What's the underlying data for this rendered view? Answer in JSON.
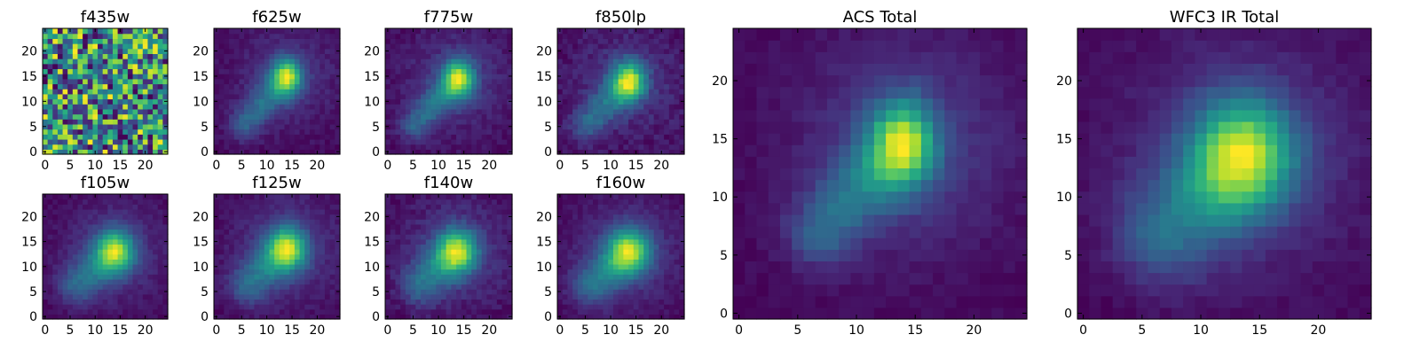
{
  "colormap": "viridis",
  "chart_data": [
    {
      "type": "heatmap",
      "title": "f435w",
      "xlim": [
        0,
        25
      ],
      "ylim": [
        0,
        25
      ],
      "xticks": [
        0,
        5,
        10,
        15,
        20
      ],
      "yticks": [
        0,
        5,
        10,
        15,
        20
      ],
      "grid": false,
      "field": {
        "kind": "noise",
        "seed": 11,
        "mean": 0.72,
        "spread": 0.55
      }
    },
    {
      "type": "heatmap",
      "title": "f625w",
      "xlim": [
        0,
        25
      ],
      "ylim": [
        0,
        25
      ],
      "xticks": [
        0,
        5,
        10,
        15,
        20
      ],
      "yticks": [
        0,
        5,
        10,
        15,
        20
      ],
      "grid": false,
      "field": {
        "kind": "galaxy",
        "seed": 23,
        "peak": [
          14.5,
          15.5
        ],
        "peak_amp": 1.0,
        "peak_sx": 2.0,
        "peak_sy": 2.6,
        "tail_from": [
          14,
          15
        ],
        "tail_to": [
          6,
          6
        ],
        "tail_amp": 0.5,
        "tail_width": 2.2,
        "halo_amp": 0.25,
        "halo_width": 7.0,
        "base": 0.2,
        "noise": 0.07
      }
    },
    {
      "type": "heatmap",
      "title": "f775w",
      "xlim": [
        0,
        25
      ],
      "ylim": [
        0,
        25
      ],
      "xticks": [
        0,
        5,
        10,
        15,
        20
      ],
      "yticks": [
        0,
        5,
        10,
        15,
        20
      ],
      "grid": false,
      "field": {
        "kind": "galaxy",
        "seed": 37,
        "peak": [
          14.5,
          15.0
        ],
        "peak_amp": 1.0,
        "peak_sx": 2.1,
        "peak_sy": 2.7,
        "tail_from": [
          14,
          15
        ],
        "tail_to": [
          6,
          6
        ],
        "tail_amp": 0.5,
        "tail_width": 2.2,
        "halo_amp": 0.25,
        "halo_width": 7.0,
        "base": 0.22,
        "noise": 0.08
      }
    },
    {
      "type": "heatmap",
      "title": "f850lp",
      "xlim": [
        0,
        25
      ],
      "ylim": [
        0,
        25
      ],
      "xticks": [
        0,
        5,
        10,
        15,
        20
      ],
      "yticks": [
        0,
        5,
        10,
        15,
        20
      ],
      "grid": false,
      "field": {
        "kind": "galaxy",
        "seed": 41,
        "peak": [
          14.0,
          14.5
        ],
        "peak_amp": 1.0,
        "peak_sx": 2.2,
        "peak_sy": 2.8,
        "tail_from": [
          14,
          14.5
        ],
        "tail_to": [
          6,
          6
        ],
        "tail_amp": 0.5,
        "tail_width": 2.3,
        "halo_amp": 0.25,
        "halo_width": 7.0,
        "base": 0.2,
        "noise": 0.1
      }
    },
    {
      "type": "heatmap",
      "title": "f105w",
      "xlim": [
        0,
        25
      ],
      "ylim": [
        0,
        25
      ],
      "xticks": [
        0,
        5,
        10,
        15,
        20
      ],
      "yticks": [
        0,
        5,
        10,
        15,
        20
      ],
      "grid": false,
      "field": {
        "kind": "galaxy",
        "seed": 53,
        "peak": [
          14.5,
          13.5
        ],
        "peak_amp": 1.0,
        "peak_sx": 2.6,
        "peak_sy": 3.0,
        "tail_from": [
          14,
          13.5
        ],
        "tail_to": [
          7,
          7
        ],
        "tail_amp": 0.55,
        "tail_width": 2.8,
        "halo_amp": 0.3,
        "halo_width": 8.0,
        "base": 0.2,
        "noise": 0.07
      }
    },
    {
      "type": "heatmap",
      "title": "f125w",
      "xlim": [
        0,
        25
      ],
      "ylim": [
        0,
        25
      ],
      "xticks": [
        0,
        5,
        10,
        15,
        20
      ],
      "yticks": [
        0,
        5,
        10,
        15,
        20
      ],
      "grid": false,
      "field": {
        "kind": "galaxy",
        "seed": 61,
        "peak": [
          14.5,
          14.0
        ],
        "peak_amp": 1.0,
        "peak_sx": 2.6,
        "peak_sy": 3.0,
        "tail_from": [
          14,
          14
        ],
        "tail_to": [
          7,
          7
        ],
        "tail_amp": 0.55,
        "tail_width": 2.8,
        "halo_amp": 0.3,
        "halo_width": 8.0,
        "base": 0.2,
        "noise": 0.07
      }
    },
    {
      "type": "heatmap",
      "title": "f140w",
      "xlim": [
        0,
        25
      ],
      "ylim": [
        0,
        25
      ],
      "xticks": [
        0,
        5,
        10,
        15,
        20
      ],
      "yticks": [
        0,
        5,
        10,
        15,
        20
      ],
      "grid": false,
      "field": {
        "kind": "galaxy",
        "seed": 71,
        "peak": [
          14.0,
          13.5
        ],
        "peak_amp": 1.0,
        "peak_sx": 2.7,
        "peak_sy": 3.1,
        "tail_from": [
          14,
          13.5
        ],
        "tail_to": [
          7,
          7
        ],
        "tail_amp": 0.55,
        "tail_width": 2.8,
        "halo_amp": 0.3,
        "halo_width": 8.0,
        "base": 0.2,
        "noise": 0.09
      }
    },
    {
      "type": "heatmap",
      "title": "f160w",
      "xlim": [
        0,
        25
      ],
      "ylim": [
        0,
        25
      ],
      "xticks": [
        0,
        5,
        10,
        15,
        20
      ],
      "yticks": [
        0,
        5,
        10,
        15,
        20
      ],
      "grid": false,
      "field": {
        "kind": "galaxy",
        "seed": 83,
        "peak": [
          14.0,
          13.5
        ],
        "peak_amp": 1.0,
        "peak_sx": 2.8,
        "peak_sy": 3.2,
        "tail_from": [
          14,
          13.5
        ],
        "tail_to": [
          7,
          7
        ],
        "tail_amp": 0.6,
        "tail_width": 3.0,
        "halo_amp": 0.3,
        "halo_width": 8.5,
        "base": 0.18,
        "noise": 0.07
      }
    },
    {
      "type": "heatmap",
      "title": "ACS Total",
      "xlim": [
        0,
        25
      ],
      "ylim": [
        0,
        25
      ],
      "xticks": [
        0,
        5,
        10,
        15,
        20
      ],
      "yticks": [
        0,
        5,
        10,
        15,
        20
      ],
      "grid": false,
      "field": {
        "kind": "galaxy",
        "seed": 97,
        "peak": [
          14.5,
          15.0
        ],
        "peak_amp": 1.0,
        "peak_sx": 1.9,
        "peak_sy": 2.8,
        "tail_from": [
          14,
          15
        ],
        "tail_to": [
          7.5,
          7.5
        ],
        "tail_amp": 0.55,
        "tail_width": 2.0,
        "halo_amp": 0.32,
        "halo_width": 6.5,
        "base": 0.2,
        "noise": 0.05
      }
    },
    {
      "type": "heatmap",
      "title": "WFC3 IR Total",
      "xlim": [
        0,
        25
      ],
      "ylim": [
        0,
        25
      ],
      "xticks": [
        0,
        5,
        10,
        15,
        20
      ],
      "yticks": [
        0,
        5,
        10,
        15,
        20
      ],
      "grid": false,
      "field": {
        "kind": "galaxy",
        "seed": 109,
        "peak": [
          14.0,
          14.0
        ],
        "peak_amp": 1.0,
        "peak_sx": 2.9,
        "peak_sy": 3.4,
        "tail_from": [
          14,
          14
        ],
        "tail_to": [
          7.5,
          7.5
        ],
        "tail_amp": 0.55,
        "tail_width": 3.0,
        "halo_amp": 0.32,
        "halo_width": 8.0,
        "base": 0.18,
        "noise": 0.05
      }
    }
  ]
}
